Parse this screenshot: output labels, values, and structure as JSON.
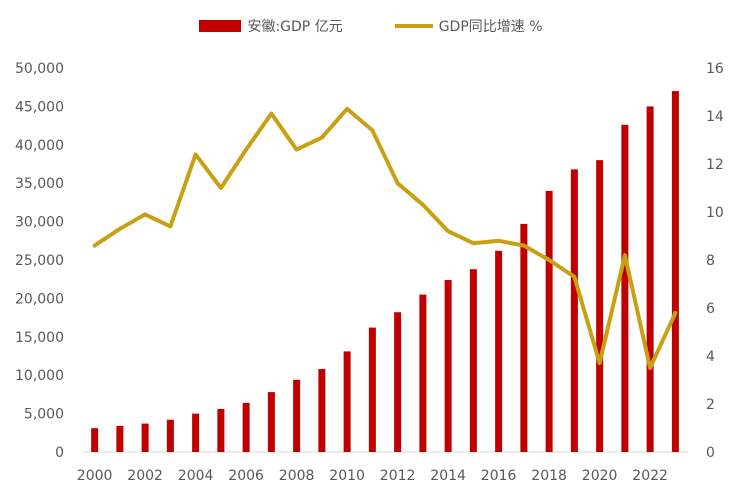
{
  "chart_data": {
    "type": "bar+line",
    "title": "",
    "x": [
      2000,
      2001,
      2002,
      2003,
      2004,
      2005,
      2006,
      2007,
      2008,
      2009,
      2010,
      2011,
      2012,
      2013,
      2014,
      2015,
      2016,
      2017,
      2018,
      2019,
      2020,
      2021,
      2022,
      2023
    ],
    "xtick_labels": [
      "2000",
      "2002",
      "2004",
      "2006",
      "2008",
      "2010",
      "2012",
      "2014",
      "2016",
      "2018",
      "2020",
      "2022"
    ],
    "series": [
      {
        "name": "安徽:GDP 亿元",
        "type": "bar",
        "axis": "left",
        "color": "#c00000",
        "values": [
          3100,
          3400,
          3700,
          4200,
          5000,
          5600,
          6400,
          7800,
          9400,
          10800,
          13100,
          16200,
          18200,
          20500,
          22400,
          23800,
          26200,
          29700,
          34000,
          36800,
          38000,
          42600,
          45000,
          47000
        ]
      },
      {
        "name": "GDP同比增速 %",
        "type": "line",
        "axis": "right",
        "color": "#c9a012",
        "values": [
          8.6,
          9.3,
          9.9,
          9.4,
          12.4,
          11.0,
          12.6,
          14.1,
          12.6,
          13.1,
          14.3,
          13.4,
          11.2,
          10.3,
          9.2,
          8.7,
          8.8,
          8.6,
          8.0,
          7.3,
          3.7,
          8.2,
          3.5,
          5.8
        ]
      }
    ],
    "y_left": {
      "min": 0,
      "max": 50000,
      "step": 5000,
      "tick_labels": [
        "0",
        "5,000",
        "10,000",
        "15,000",
        "20,000",
        "25,000",
        "30,000",
        "35,000",
        "40,000",
        "45,000",
        "50,000"
      ]
    },
    "y_right": {
      "min": 0,
      "max": 16,
      "step": 2,
      "tick_labels": [
        "0",
        "2",
        "4",
        "6",
        "8",
        "10",
        "12",
        "14",
        "16"
      ]
    },
    "xlabel": "",
    "ylabel": "",
    "grid": false,
    "legend_position": "top-center"
  }
}
